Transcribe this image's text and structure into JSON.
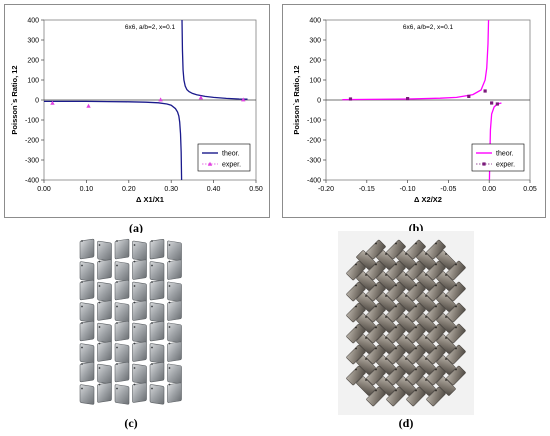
{
  "chart_data": [
    {
      "type": "line",
      "title": "6x6, a/b=2, x=0.1",
      "xlabel": "Δ X1/X1",
      "ylabel": "Poisson`s Ratio, 12",
      "xlim": [
        0.0,
        0.5
      ],
      "ylim": [
        -400,
        400
      ],
      "xticks": [
        "0.00",
        "0.10",
        "0.20",
        "0.30",
        "0.40",
        "0.50"
      ],
      "yticks": [
        "-400",
        "-300",
        "-200",
        "-100",
        "0",
        "100",
        "200",
        "300",
        "400"
      ],
      "grid": false,
      "legend_position": "bottom-right",
      "series": [
        {
          "name": "theor.",
          "color": "#1a1a8c",
          "x": [
            0.0,
            0.05,
            0.1,
            0.15,
            0.2,
            0.24,
            0.27,
            0.29,
            0.3,
            0.31,
            0.315,
            0.318,
            0.32,
            0.322,
            0.3235,
            0.3245,
            0.325,
            0.3255,
            0.3265,
            0.328,
            0.33,
            0.333,
            0.337,
            0.342,
            0.35,
            0.36,
            0.38,
            0.4,
            0.43,
            0.46,
            0.48
          ],
          "y": [
            -7,
            -7,
            -7,
            -8,
            -9,
            -11,
            -14,
            -20,
            -26,
            -43,
            -60,
            -80,
            -110,
            -170,
            -260,
            -400,
            null,
            400,
            250,
            150,
            100,
            70,
            52,
            42,
            33,
            26,
            18,
            13,
            8,
            5,
            4
          ]
        },
        {
          "name": "exper.",
          "color": "#e040e0",
          "marker": "triangle",
          "x": [
            0.02,
            0.105,
            0.275,
            0.37,
            0.47
          ],
          "y": [
            -15,
            -30,
            2,
            12,
            2
          ]
        }
      ]
    },
    {
      "type": "line",
      "title": "6x6, a/b=2, x=0.1",
      "xlabel": "Δ X2/X2",
      "ylabel": "Poisson`s Ratio, 12",
      "xlim": [
        -0.2,
        0.05
      ],
      "ylim": [
        -400,
        400
      ],
      "xticks": [
        "-0.20",
        "-0.15",
        "-0.10",
        "-0.05",
        "0.00",
        "0.05"
      ],
      "yticks": [
        "-400",
        "-300",
        "-200",
        "-100",
        "0",
        "100",
        "200",
        "300",
        "400"
      ],
      "grid": false,
      "legend_position": "bottom-right",
      "series": [
        {
          "name": "theor.",
          "color": "#ff00ff",
          "x": [
            -0.18,
            -0.15,
            -0.1,
            -0.06,
            -0.04,
            -0.02,
            -0.01,
            -0.005,
            -0.003,
            -0.0015,
            -0.0008,
            -0.0003,
            null,
            0.0003,
            0.0008,
            0.0015,
            0.003,
            0.006,
            0.01,
            0.015
          ],
          "y": [
            2,
            3,
            5,
            9,
            13,
            27,
            50,
            100,
            160,
            280,
            400,
            400,
            null,
            -400,
            -280,
            -150,
            -70,
            -35,
            -20,
            -15
          ]
        },
        {
          "name": "exper.",
          "color": "#7a1a7a",
          "marker": "square",
          "x": [
            -0.17,
            -0.1,
            -0.025,
            -0.005,
            0.003,
            0.01
          ],
          "y": [
            5,
            7,
            18,
            45,
            -15,
            -20
          ]
        }
      ]
    }
  ],
  "captions": [
    "(a)",
    "(b)",
    "(c)",
    "(d)"
  ]
}
